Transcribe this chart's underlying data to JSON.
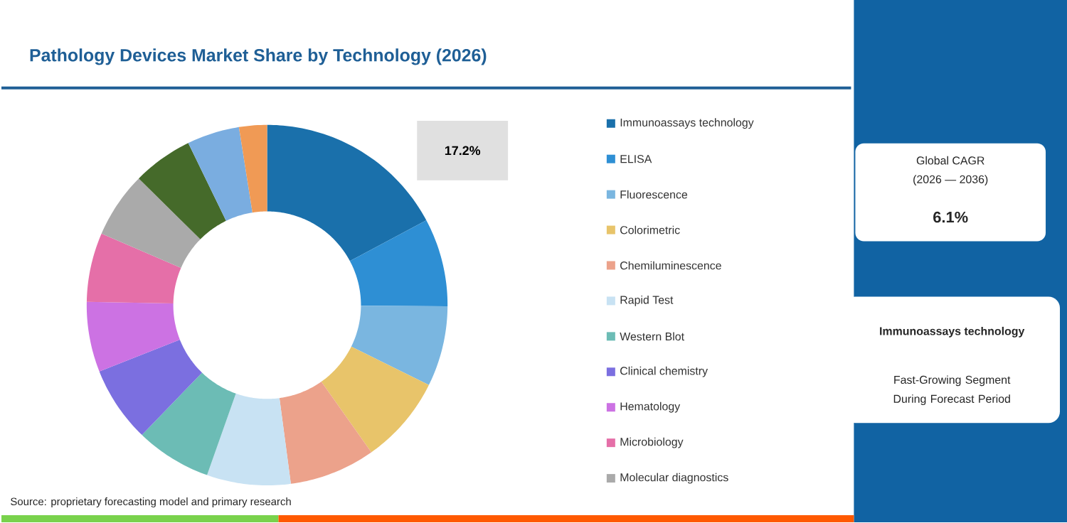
{
  "chart_data": {
    "type": "donut",
    "title": "Pathology Devices Market Share by Technology (2026)",
    "categories": [
      "Immunoassays technology",
      "ELISA",
      "Fluorescence",
      "Colorimetric",
      "Chemiluminescence",
      "Rapid Test",
      "Western Blot",
      "Clinical chemistry",
      "Hematology",
      "Microbiology",
      "Molecular diagnostics",
      null,
      null,
      null
    ],
    "values": [
      17.2,
      7.9,
      7.2,
      7.9,
      7.7,
      7.5,
      6.8,
      6.8,
      6.3,
      6.2,
      5.9,
      5.4,
      4.7,
      2.5
    ],
    "colors": [
      "#1a70ab",
      "#2e8fd4",
      "#7ab6e0",
      "#e8c46a",
      "#eca28b",
      "#c8e2f3",
      "#6cbcb5",
      "#7b6fe0",
      "#cc72e3",
      "#e56fa8",
      "#aaaaaa",
      "#456a2a",
      "#7aade0",
      "#f09a55"
    ],
    "value_labels": [
      "17.2%",
      null,
      null,
      null,
      null,
      null,
      null,
      null,
      null,
      null,
      null,
      null,
      null,
      null
    ],
    "legend": "right",
    "annotations": [
      "Source: proprietary forecasting model and primary research",
      "Global CAGR",
      "(2026 — 2036)",
      "6.1%",
      "Immunoassays technology",
      "Fast-Growing Segment During Forecast Period"
    ]
  }
}
